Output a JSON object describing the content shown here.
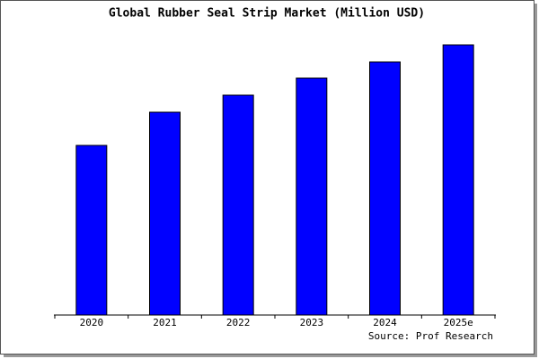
{
  "chart_data": {
    "type": "bar",
    "title": "Global Rubber Seal Strip Market (Million USD)",
    "categories": [
      "2020",
      "2021",
      "2022",
      "2023",
      "2024",
      "2025e"
    ],
    "values": [
      189,
      226,
      245,
      264,
      282,
      301
    ],
    "color": "#0000ff",
    "ylim": [
      0,
      301
    ],
    "source": "Source: Prof Research"
  }
}
